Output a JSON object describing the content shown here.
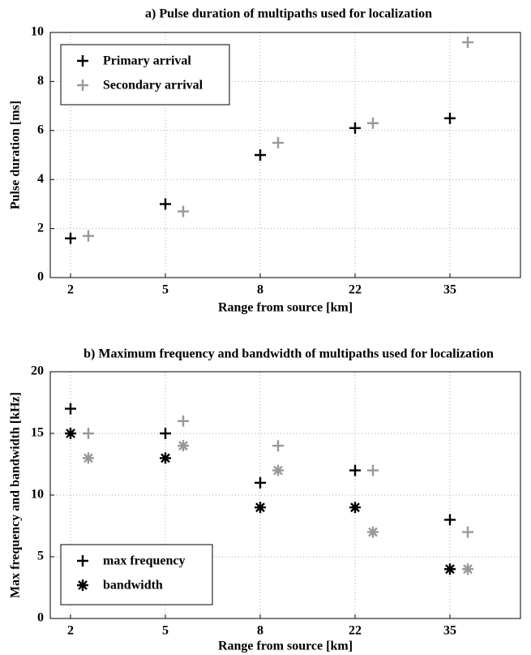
{
  "chart_data": [
    {
      "type": "scatter",
      "title": "a) Pulse duration of multipaths used for localization",
      "x_label": "Range from source [km]",
      "y_label": "Pulse duration [ms]",
      "categories": [
        "2",
        "5",
        "8",
        "22",
        "35"
      ],
      "series": [
        {
          "name": "Primary arrival",
          "color": "#000000",
          "marker": "plus",
          "values": [
            1.6,
            3,
            5,
            6.1,
            6.5
          ]
        },
        {
          "name": "Secondary arrival",
          "color": "#999999",
          "marker": "plus",
          "values": [
            1.7,
            2.7,
            5.5,
            6.3,
            9.6
          ]
        }
      ],
      "ylim": [
        0,
        10
      ],
      "yticks": [
        0,
        2,
        4,
        6,
        8,
        10
      ],
      "grid": true,
      "legend": "upper left"
    },
    {
      "type": "scatter",
      "title": "b) Maximum frequency and bandwidth of multipaths used for localization",
      "x_label": "Range from source [km]",
      "y_label": "Max frequency and bandwidth [kHz]",
      "categories": [
        "2",
        "5",
        "8",
        "22",
        "35"
      ],
      "series": [
        {
          "name": "max frequency",
          "color": "#000000",
          "marker": "plus",
          "values": [
            17,
            15,
            11,
            12,
            8
          ]
        },
        {
          "name": "bandwidth",
          "color": "#000000",
          "marker": "star",
          "values": [
            15,
            13,
            9,
            9,
            4
          ]
        },
        {
          "color": "#999999",
          "marker": "plus",
          "values": [
            15,
            16,
            14,
            12,
            7
          ]
        },
        {
          "color": "#999999",
          "marker": "star",
          "values": [
            13,
            14,
            12,
            7,
            4
          ]
        }
      ],
      "ylim": [
        0,
        20
      ],
      "yticks": [
        0,
        5,
        10,
        15,
        20
      ],
      "grid": true,
      "legend": "lower left"
    }
  ]
}
